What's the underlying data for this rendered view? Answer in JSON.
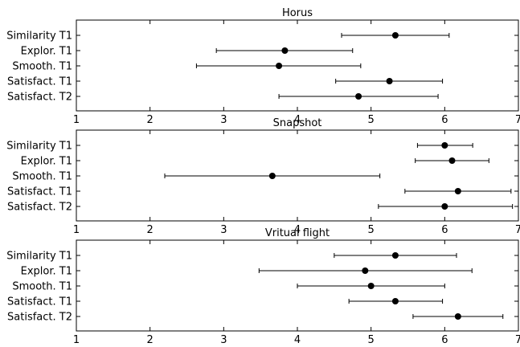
{
  "chart_data": [
    {
      "type": "scatter",
      "title": "Horus",
      "xlim": [
        1,
        7
      ],
      "xticks": [
        1,
        2,
        3,
        4,
        5,
        6,
        7
      ],
      "categories": [
        "Similarity T1",
        "Explor. T1",
        "Smooth. T1",
        "Satisfact. T1",
        "Satisfact. T2"
      ],
      "values": [
        5.33,
        3.83,
        3.75,
        5.25,
        4.83
      ],
      "error_low": [
        4.6,
        2.9,
        2.63,
        4.52,
        3.75
      ],
      "error_high": [
        6.06,
        4.75,
        4.86,
        5.97,
        5.91
      ],
      "grid": false
    },
    {
      "type": "scatter",
      "title": "Snapshot",
      "xlim": [
        1,
        7
      ],
      "xticks": [
        1,
        2,
        3,
        4,
        5,
        6,
        7
      ],
      "categories": [
        "Similarity T1",
        "Explor. T1",
        "Smooth. T1",
        "Satisfact. T1",
        "Satisfact. T2"
      ],
      "values": [
        6.0,
        6.1,
        3.66,
        6.18,
        6.0
      ],
      "error_low": [
        5.63,
        5.6,
        2.2,
        5.46,
        5.1
      ],
      "error_high": [
        6.38,
        6.6,
        5.12,
        6.9,
        6.92
      ],
      "grid": false
    },
    {
      "type": "scatter",
      "title": "Vritual flight",
      "xlim": [
        1,
        7
      ],
      "xticks": [
        1,
        2,
        3,
        4,
        5,
        6,
        7
      ],
      "categories": [
        "Similarity T1",
        "Explor. T1",
        "Smooth. T1",
        "Satisfact. T1",
        "Satisfact. T2"
      ],
      "values": [
        5.33,
        4.92,
        5.0,
        5.33,
        6.18
      ],
      "error_low": [
        4.5,
        3.48,
        4.0,
        4.7,
        5.57
      ],
      "error_high": [
        6.16,
        6.37,
        6.0,
        5.97,
        6.79
      ],
      "grid": false
    }
  ],
  "colors": {
    "marker": "#000000",
    "axes": "#000000"
  }
}
